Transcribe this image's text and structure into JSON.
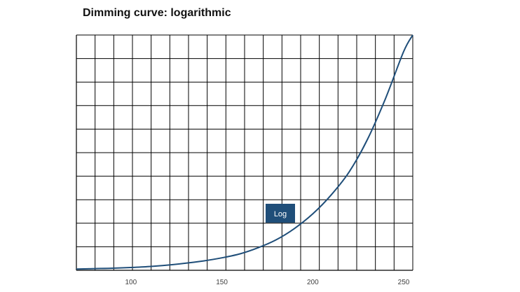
{
  "chart_data": {
    "type": "line",
    "title": "Dimming curve: logarithmic",
    "xlabel": "",
    "ylabel": "",
    "xlim": [
      70,
      255
    ],
    "ylim": [
      0,
      100
    ],
    "xticks": [
      100,
      150,
      200,
      250
    ],
    "grid": true,
    "series": [
      {
        "name": "Log",
        "color": "#1f4e79",
        "x": [
          70,
          80,
          90,
          100,
          110,
          120,
          130,
          140,
          150,
          160,
          170,
          180,
          190,
          200,
          210,
          220,
          230,
          240,
          250,
          255
        ],
        "y": [
          0.5,
          0.7,
          0.9,
          1.2,
          1.6,
          2.2,
          3.0,
          4.0,
          5.3,
          7.0,
          9.6,
          13.0,
          17.8,
          24.0,
          31.9,
          41.8,
          55.5,
          73.0,
          93.0,
          100
        ]
      }
    ],
    "label_box": {
      "text": "Log",
      "color": "#1f4e79"
    }
  }
}
